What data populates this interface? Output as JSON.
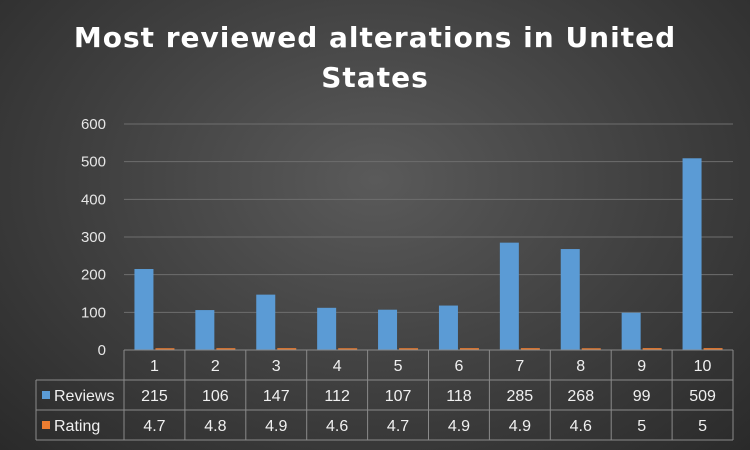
{
  "chart_data": {
    "type": "bar",
    "title_line1": "Most reviewed alterations in United",
    "title_line2": "States",
    "categories": [
      "1",
      "2",
      "3",
      "4",
      "5",
      "6",
      "7",
      "8",
      "9",
      "10"
    ],
    "series": [
      {
        "name": "Reviews",
        "color": "#5b9bd5",
        "values": [
          215,
          106,
          147,
          112,
          107,
          118,
          285,
          268,
          99,
          509
        ]
      },
      {
        "name": "Rating",
        "color": "#ed7d31",
        "values": [
          4.7,
          4.8,
          4.9,
          4.6,
          4.7,
          4.9,
          4.9,
          4.6,
          5,
          5
        ]
      }
    ],
    "yticks": [
      "0",
      "100",
      "200",
      "300",
      "400",
      "500",
      "600"
    ],
    "ylim": [
      0,
      600
    ],
    "grid": true,
    "legend": "data-table"
  }
}
